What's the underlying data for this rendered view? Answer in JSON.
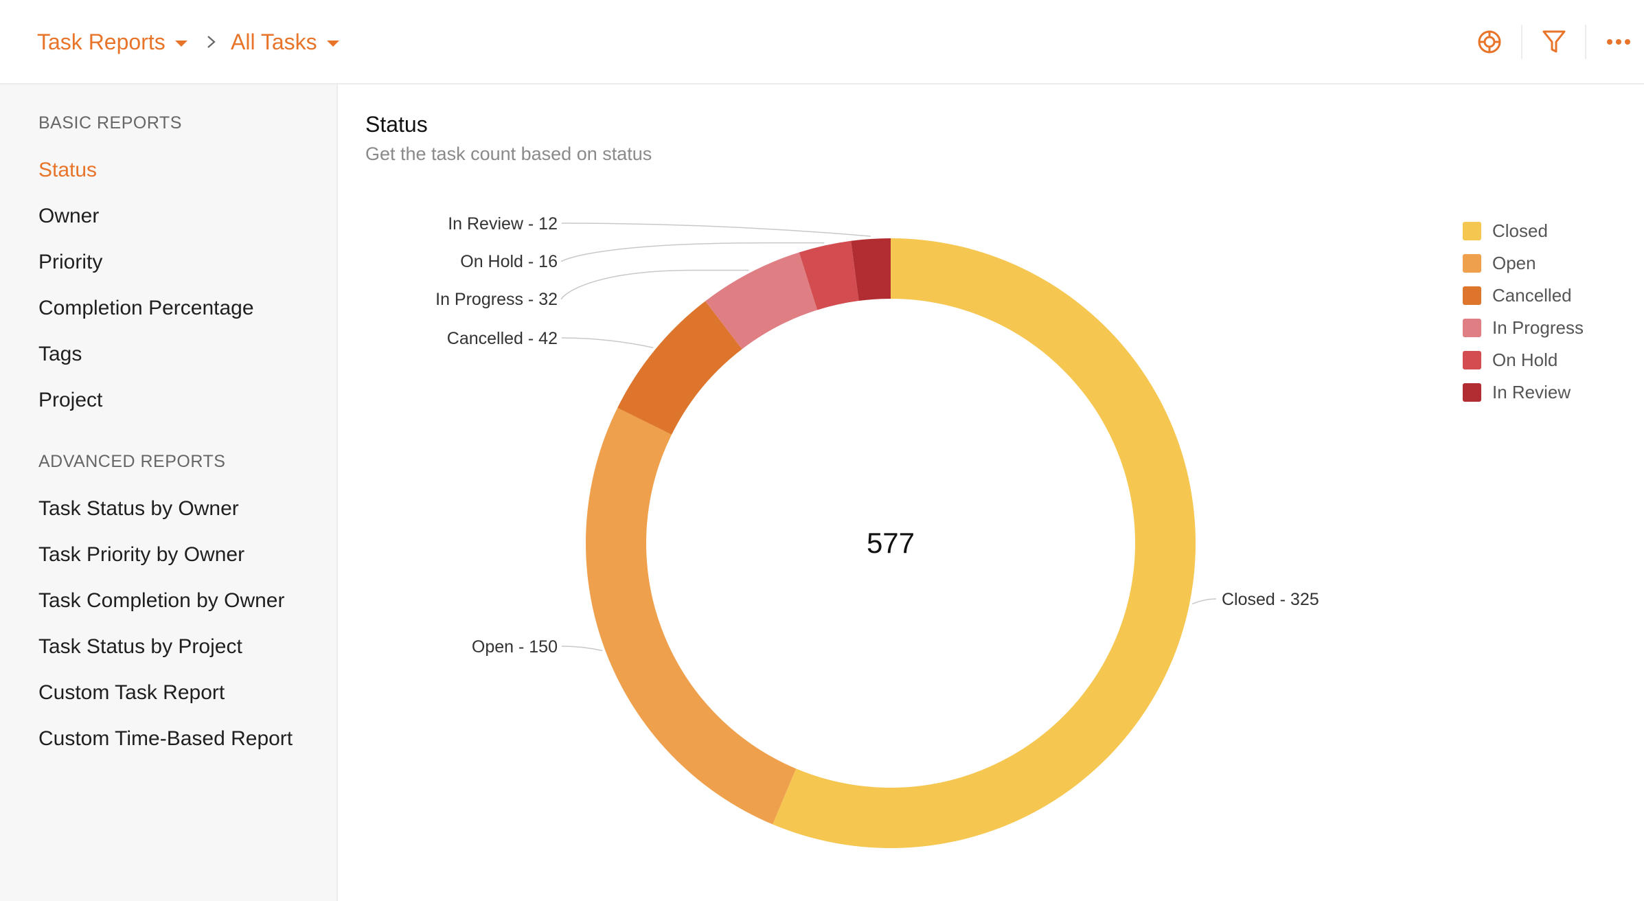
{
  "breadcrumb": {
    "root_label": "Task Reports",
    "current_label": "All Tasks"
  },
  "toolbar": {
    "icons": [
      "target-icon",
      "filter-icon",
      "more-icon"
    ],
    "accent": "#e8742a"
  },
  "sidebar": {
    "basic_heading": "BASIC REPORTS",
    "basic_items": [
      {
        "label": "Status",
        "active": true
      },
      {
        "label": "Owner"
      },
      {
        "label": "Priority"
      },
      {
        "label": "Completion Percentage"
      },
      {
        "label": "Tags"
      },
      {
        "label": "Project"
      }
    ],
    "advanced_heading": "ADVANCED REPORTS",
    "advanced_items": [
      {
        "label": "Task Status by Owner"
      },
      {
        "label": "Task Priority by Owner"
      },
      {
        "label": "Task Completion by Owner"
      },
      {
        "label": "Task Status by Project"
      },
      {
        "label": "Custom Task Report"
      },
      {
        "label": "Custom Time-Based Report"
      }
    ]
  },
  "report": {
    "title": "Status",
    "subtitle": "Get the task count based on status"
  },
  "chart_data": {
    "type": "pie",
    "donut": true,
    "total_label": "577",
    "legend_position": "top-right",
    "slices": [
      {
        "label": "Closed",
        "value": 325,
        "color": "#f5c650",
        "callout": "Closed - 325"
      },
      {
        "label": "Open",
        "value": 150,
        "color": "#efa04c",
        "callout": "Open - 150"
      },
      {
        "label": "Cancelled",
        "value": 42,
        "color": "#dd752d",
        "callout": "Cancelled - 42"
      },
      {
        "label": "In Progress",
        "value": 32,
        "color": "#df7f84",
        "callout": "In Progress - 32"
      },
      {
        "label": "On Hold",
        "value": 16,
        "color": "#d24c50",
        "callout": "On Hold - 16"
      },
      {
        "label": "In Review",
        "value": 12,
        "color": "#b22d32",
        "callout": "In Review - 12"
      }
    ]
  }
}
